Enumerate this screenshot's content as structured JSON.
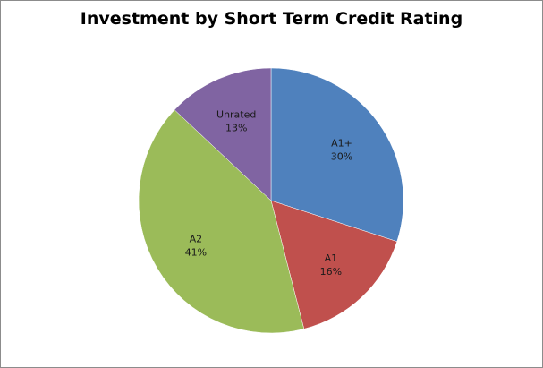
{
  "chart_data": {
    "type": "pie",
    "title": "Investment by Short Term Credit Rating",
    "slices": [
      {
        "label": "A1+",
        "value": 30,
        "display": "30%",
        "color": "#4f81bd"
      },
      {
        "label": "A1",
        "value": 16,
        "display": "16%",
        "color": "#c0504d"
      },
      {
        "label": "A2",
        "value": 41,
        "display": "41%",
        "color": "#9bbb59"
      },
      {
        "label": "Unrated",
        "value": 13,
        "display": "13%",
        "color": "#8064a2"
      }
    ]
  }
}
